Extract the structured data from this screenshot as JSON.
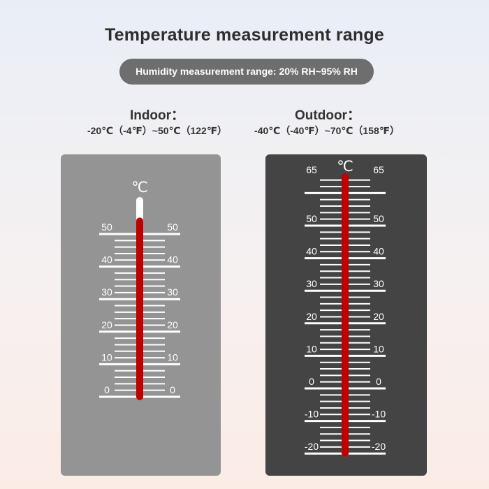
{
  "title": "Temperature measurement range",
  "humidity_pill": "Humidity measurement range: 20% RH~95% RH",
  "indoor": {
    "label": "Indoor：",
    "range": "-20℃（-4℉）~50℃（122℉）",
    "unit": "℃",
    "scale_labels": [
      "50",
      "40",
      "30",
      "20",
      "10",
      "0"
    ],
    "scale_max": 50,
    "scale_min": 0,
    "reading": 54
  },
  "outdoor": {
    "label": "Outdoor：",
    "range": "-40℃（-40℉）~70℃（158℉）",
    "unit": "℃",
    "scale_labels": [
      "65",
      "50",
      "40",
      "30",
      "20",
      "10",
      "0",
      "-10",
      "-20"
    ],
    "scale_max": 65,
    "scale_min": -20,
    "reading": 65
  },
  "colors": {
    "indoor_panel": "#949494",
    "outdoor_panel": "#444444",
    "mercury": "#c00000",
    "tube": "#ffffff",
    "pill": "#6e6e6e"
  }
}
